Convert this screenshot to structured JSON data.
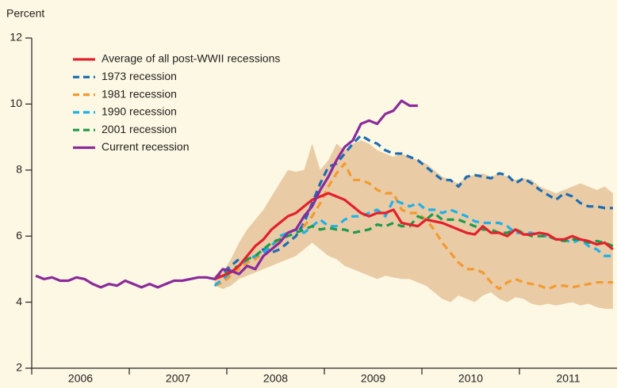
{
  "chart_data": {
    "type": "line",
    "y_label": "Percent",
    "ylim": [
      2,
      12
    ],
    "yticks": [
      2,
      4,
      6,
      8,
      10,
      12
    ],
    "categories": [
      null,
      null,
      null,
      null,
      null,
      null,
      "2006",
      null,
      null,
      null,
      null,
      null,
      null,
      null,
      null,
      null,
      null,
      null,
      "2007",
      null,
      null,
      null,
      null,
      null,
      null,
      null,
      null,
      null,
      null,
      null,
      "2008",
      null,
      null,
      null,
      null,
      null,
      null,
      null,
      null,
      null,
      null,
      null,
      "2009",
      null,
      null,
      null,
      null,
      null,
      null,
      null,
      null,
      null,
      null,
      null,
      "2010",
      null,
      null,
      null,
      null,
      null,
      null,
      null,
      null,
      null,
      null,
      null,
      "2011",
      null,
      null,
      null,
      null,
      null
    ],
    "band": {
      "color": "#e9cba6",
      "high": [
        null,
        null,
        null,
        null,
        null,
        null,
        null,
        null,
        null,
        null,
        null,
        null,
        null,
        null,
        null,
        null,
        null,
        null,
        null,
        null,
        null,
        null,
        4.8,
        4.9,
        5.3,
        5.8,
        6.2,
        6.5,
        6.8,
        7.2,
        7.6,
        8.0,
        7.95,
        8.0,
        8.8,
        8.0,
        8.3,
        8.8,
        8.6,
        8.8,
        8.9,
        8.8,
        8.6,
        8.5,
        8.4,
        8.5,
        8.4,
        8.3,
        8.2,
        8.0,
        7.8,
        7.7,
        7.6,
        7.8,
        7.85,
        7.9,
        7.8,
        7.9,
        7.8,
        7.7,
        7.75,
        7.7,
        7.5,
        7.4,
        7.3,
        7.4,
        7.5,
        7.6,
        7.5,
        7.4,
        7.5,
        7.3
      ],
      "low": [
        null,
        null,
        null,
        null,
        null,
        null,
        null,
        null,
        null,
        null,
        null,
        null,
        null,
        null,
        null,
        null,
        null,
        null,
        null,
        null,
        null,
        null,
        4.5,
        4.4,
        4.5,
        4.7,
        4.8,
        4.9,
        5.0,
        5.1,
        5.2,
        5.3,
        5.4,
        5.6,
        5.8,
        5.6,
        5.4,
        5.3,
        5.1,
        5.0,
        4.9,
        4.8,
        4.7,
        4.8,
        4.75,
        4.7,
        4.7,
        4.6,
        4.5,
        4.3,
        4.1,
        4.0,
        4.2,
        4.1,
        4.0,
        4.2,
        4.3,
        4.1,
        4.0,
        4.15,
        4.1,
        3.95,
        3.9,
        3.95,
        3.9,
        3.95,
        4.0,
        3.9,
        3.95,
        3.85,
        3.8,
        3.8
      ]
    },
    "series": [
      {
        "name": "Average of all post-WWII recessions",
        "color": "#e3202b",
        "dashed": false,
        "values": [
          null,
          null,
          null,
          null,
          null,
          null,
          null,
          null,
          null,
          null,
          null,
          null,
          null,
          null,
          null,
          null,
          null,
          null,
          null,
          null,
          null,
          null,
          4.7,
          4.8,
          4.9,
          5.1,
          5.4,
          5.7,
          5.9,
          6.2,
          6.4,
          6.6,
          6.7,
          6.9,
          7.1,
          7.2,
          7.3,
          7.2,
          7.1,
          6.9,
          6.7,
          6.6,
          6.7,
          6.7,
          6.8,
          6.4,
          6.35,
          6.3,
          6.5,
          6.45,
          6.4,
          6.3,
          6.2,
          6.1,
          6.05,
          6.3,
          6.1,
          6.1,
          6.0,
          6.2,
          6.05,
          6.05,
          6.1,
          6.05,
          5.9,
          5.9,
          6.0,
          5.9,
          5.85,
          5.75,
          5.8,
          5.6
        ]
      },
      {
        "name": "1973 recession",
        "color": "#1b6db3",
        "dashed": true,
        "values": [
          null,
          null,
          null,
          null,
          null,
          null,
          null,
          null,
          null,
          null,
          null,
          null,
          null,
          null,
          null,
          null,
          null,
          null,
          null,
          null,
          null,
          null,
          4.7,
          4.9,
          5.1,
          5.3,
          5.2,
          5.4,
          5.6,
          5.5,
          5.6,
          5.8,
          6.0,
          6.4,
          7.0,
          7.6,
          8.1,
          8.2,
          8.5,
          8.8,
          9.05,
          8.9,
          8.8,
          8.6,
          8.5,
          8.5,
          8.4,
          8.3,
          8.1,
          7.9,
          7.7,
          7.7,
          7.5,
          7.8,
          7.85,
          7.8,
          7.75,
          7.9,
          7.85,
          7.6,
          7.75,
          7.6,
          7.4,
          7.25,
          7.1,
          7.3,
          7.2,
          7.0,
          6.9,
          6.9,
          6.85,
          6.85
        ]
      },
      {
        "name": "1981 recession",
        "color": "#f39a30",
        "dashed": true,
        "values": [
          null,
          null,
          null,
          null,
          null,
          null,
          null,
          null,
          null,
          null,
          null,
          null,
          null,
          null,
          null,
          null,
          null,
          null,
          null,
          null,
          null,
          null,
          4.5,
          4.6,
          4.8,
          5.0,
          5.2,
          5.3,
          5.5,
          5.7,
          5.9,
          6.1,
          6.2,
          6.3,
          6.6,
          7.0,
          7.5,
          7.9,
          8.2,
          7.7,
          7.7,
          7.6,
          7.4,
          7.3,
          7.3,
          6.8,
          6.7,
          6.7,
          6.5,
          6.2,
          5.8,
          5.5,
          5.2,
          5.0,
          5.0,
          4.9,
          4.6,
          4.4,
          4.6,
          4.7,
          4.6,
          4.55,
          4.5,
          4.4,
          4.5,
          4.5,
          4.45,
          4.5,
          4.55,
          4.6,
          4.6,
          4.6
        ]
      },
      {
        "name": "1990 recession",
        "color": "#1db1e8",
        "dashed": true,
        "values": [
          null,
          null,
          null,
          null,
          null,
          null,
          null,
          null,
          null,
          null,
          null,
          null,
          null,
          null,
          null,
          null,
          null,
          null,
          null,
          null,
          null,
          null,
          4.5,
          4.7,
          4.9,
          5.1,
          5.3,
          5.4,
          5.5,
          5.7,
          6.0,
          6.1,
          6.2,
          6.1,
          6.3,
          6.5,
          6.3,
          6.3,
          6.5,
          6.6,
          6.6,
          6.7,
          6.8,
          6.6,
          7.1,
          7.0,
          6.9,
          7.0,
          6.8,
          6.8,
          6.7,
          6.8,
          6.7,
          6.6,
          6.45,
          6.4,
          6.4,
          6.4,
          6.3,
          6.1,
          6.1,
          6.1,
          6.0,
          6.0,
          5.9,
          5.9,
          5.8,
          5.9,
          5.7,
          5.6,
          5.4,
          5.4
        ]
      },
      {
        "name": "2001 recession",
        "color": "#1e9a4b",
        "dashed": true,
        "values": [
          null,
          null,
          null,
          null,
          null,
          null,
          null,
          null,
          null,
          null,
          null,
          null,
          null,
          null,
          null,
          null,
          null,
          null,
          null,
          null,
          null,
          null,
          4.7,
          4.8,
          5.0,
          5.1,
          5.3,
          5.4,
          5.6,
          5.8,
          5.9,
          6.0,
          6.1,
          6.2,
          6.3,
          6.2,
          6.25,
          6.2,
          6.2,
          6.1,
          6.15,
          6.2,
          6.35,
          6.3,
          6.4,
          6.3,
          6.3,
          6.6,
          6.5,
          6.7,
          6.5,
          6.5,
          6.5,
          6.4,
          6.3,
          6.2,
          6.2,
          6.1,
          6.1,
          6.2,
          6.1,
          6.0,
          6.0,
          6.0,
          5.9,
          5.85,
          5.9,
          5.9,
          5.8,
          5.85,
          5.8,
          5.7
        ]
      },
      {
        "name": "Current recession",
        "color": "#8a2b9b",
        "dashed": false,
        "values": [
          4.8,
          4.7,
          4.75,
          4.65,
          4.65,
          4.75,
          4.7,
          4.55,
          4.45,
          4.55,
          4.5,
          4.65,
          4.55,
          4.45,
          4.55,
          4.45,
          4.55,
          4.65,
          4.65,
          4.7,
          4.75,
          4.75,
          4.7,
          5.0,
          4.95,
          4.85,
          5.1,
          5.0,
          5.4,
          5.6,
          5.8,
          6.1,
          6.2,
          6.6,
          6.9,
          7.4,
          7.8,
          8.3,
          8.7,
          8.9,
          9.4,
          9.5,
          9.4,
          9.7,
          9.8,
          10.1,
          9.95,
          9.95,
          null,
          null,
          null,
          null,
          null,
          null,
          null,
          null,
          null,
          null,
          null,
          null,
          null,
          null,
          null,
          null,
          null,
          null,
          null,
          null,
          null,
          null,
          null,
          null
        ]
      }
    ]
  }
}
